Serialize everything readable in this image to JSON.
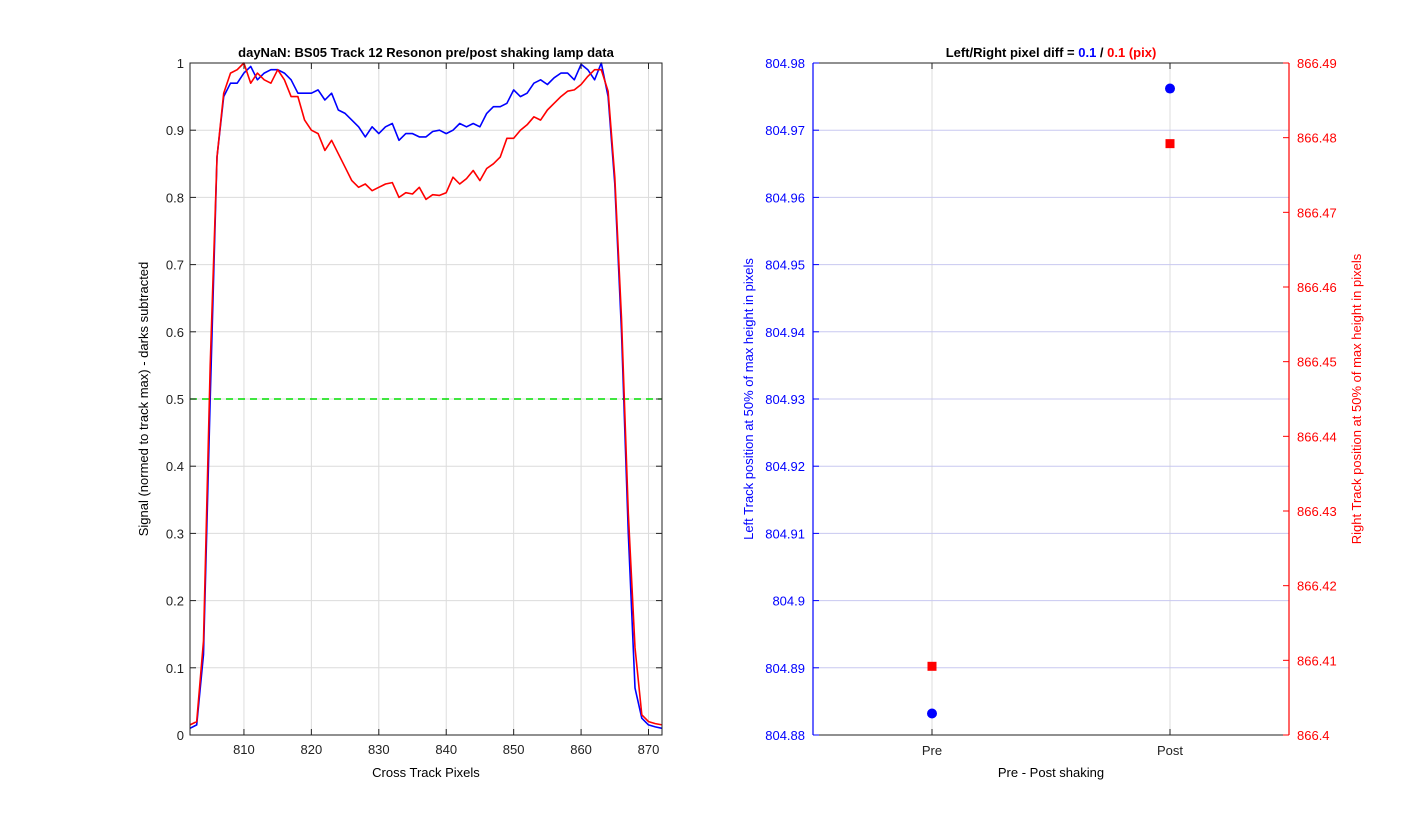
{
  "chart_data": [
    {
      "type": "line",
      "title": "dayNaN: BS05  Track 12 Resonon pre/post shaking lamp data",
      "xlabel": "Cross Track Pixels",
      "ylabel": "Signal (normed to track max) - darks subtracted",
      "xlim": [
        802,
        872
      ],
      "ylim": [
        0,
        1
      ],
      "xticks": [
        810,
        820,
        830,
        840,
        850,
        860,
        870
      ],
      "yticks": [
        0,
        0.1,
        0.2,
        0.3,
        0.4,
        0.5,
        0.6,
        0.7,
        0.8,
        0.9,
        1
      ],
      "grid": true,
      "colors": {
        "pre": "#0000ff",
        "post": "#ff0000",
        "threshold": "#00dd00"
      },
      "threshold": 0.5,
      "series": [
        {
          "x": [
            802,
            803,
            804,
            805,
            806,
            807,
            808,
            809,
            810,
            811,
            812,
            813,
            814,
            815,
            816,
            817,
            818,
            819,
            820,
            821,
            822,
            823,
            824,
            825,
            826,
            827,
            828,
            829,
            830,
            831,
            832,
            833,
            834,
            835,
            836,
            837,
            838,
            839,
            840,
            841,
            842,
            843,
            844,
            845,
            846,
            847,
            848,
            849,
            850,
            851,
            852,
            853,
            854,
            855,
            856,
            857,
            858,
            859,
            860,
            861,
            862,
            863,
            864,
            865,
            866,
            867,
            868,
            869,
            870,
            871,
            872
          ],
          "values": [
            0.01,
            0.015,
            0.12,
            0.5,
            0.86,
            0.95,
            0.97,
            0.97,
            0.985,
            0.995,
            0.975,
            0.985,
            0.99,
            0.99,
            0.985,
            0.975,
            0.955,
            0.955,
            0.955,
            0.96,
            0.945,
            0.955,
            0.93,
            0.925,
            0.915,
            0.905,
            0.89,
            0.905,
            0.895,
            0.905,
            0.91,
            0.885,
            0.895,
            0.895,
            0.89,
            0.89,
            0.898,
            0.9,
            0.895,
            0.9,
            0.91,
            0.905,
            0.91,
            0.905,
            0.925,
            0.935,
            0.935,
            0.94,
            0.96,
            0.95,
            0.955,
            0.97,
            0.975,
            0.968,
            0.978,
            0.985,
            0.985,
            0.975,
            0.998,
            0.99,
            0.975,
            1.0,
            0.95,
            0.82,
            0.6,
            0.3,
            0.07,
            0.025,
            0.015,
            0.012,
            0.01
          ]
        },
        {
          "x": [
            802,
            803,
            804,
            805,
            806,
            807,
            808,
            809,
            810,
            811,
            812,
            813,
            814,
            815,
            816,
            817,
            818,
            819,
            820,
            821,
            822,
            823,
            824,
            825,
            826,
            827,
            828,
            829,
            830,
            831,
            832,
            833,
            834,
            835,
            836,
            837,
            838,
            839,
            840,
            841,
            842,
            843,
            844,
            845,
            846,
            847,
            848,
            849,
            850,
            851,
            852,
            853,
            854,
            855,
            856,
            857,
            858,
            859,
            860,
            861,
            862,
            863,
            864,
            865,
            866,
            867,
            868,
            869,
            870,
            871,
            872
          ],
          "values": [
            0.015,
            0.02,
            0.14,
            0.55,
            0.86,
            0.955,
            0.985,
            0.99,
            1.0,
            0.97,
            0.985,
            0.975,
            0.97,
            0.99,
            0.975,
            0.95,
            0.95,
            0.915,
            0.9,
            0.895,
            0.87,
            0.885,
            0.865,
            0.845,
            0.825,
            0.815,
            0.82,
            0.81,
            0.815,
            0.82,
            0.822,
            0.8,
            0.807,
            0.805,
            0.815,
            0.797,
            0.804,
            0.803,
            0.807,
            0.83,
            0.82,
            0.828,
            0.84,
            0.825,
            0.843,
            0.85,
            0.86,
            0.888,
            0.888,
            0.9,
            0.908,
            0.92,
            0.915,
            0.93,
            0.94,
            0.95,
            0.958,
            0.96,
            0.968,
            0.98,
            0.99,
            0.99,
            0.958,
            0.83,
            0.62,
            0.33,
            0.13,
            0.03,
            0.02,
            0.017,
            0.015
          ]
        }
      ]
    },
    {
      "type": "scatter",
      "title_parts": [
        "Left/Right pixel diff = ",
        "0.1",
        " / ",
        "0.1 (pix)"
      ],
      "xlabel": "Pre - Post shaking",
      "ylabel_left": "Left Track position at 50% of max height in pixels",
      "ylabel_right": "Right Track position at 50% of max height in pixels",
      "categories": [
        "Pre",
        "Post"
      ],
      "xlim": [
        0.5,
        2.5
      ],
      "ylim_left": [
        804.88,
        804.98
      ],
      "ylim_right": [
        866.4,
        866.49
      ],
      "yticks_left": [
        "804.88",
        "804.89",
        "804.9",
        "804.91",
        "804.92",
        "804.93",
        "804.94",
        "804.95",
        "804.96",
        "804.97",
        "804.98"
      ],
      "yticks_right": [
        "866.4",
        "866.41",
        "866.42",
        "866.43",
        "866.44",
        "866.45",
        "866.46",
        "866.47",
        "866.48",
        "866.49"
      ],
      "grid": true,
      "colors": {
        "left": "#0000ff",
        "right": "#ff0000",
        "grid": "#c8c8f0"
      },
      "series": [
        {
          "axis": "left",
          "marker": "circle",
          "values": [
            804.8832,
            804.9762
          ]
        },
        {
          "axis": "right",
          "marker": "square",
          "values": [
            866.4092,
            866.4792
          ]
        }
      ]
    }
  ]
}
